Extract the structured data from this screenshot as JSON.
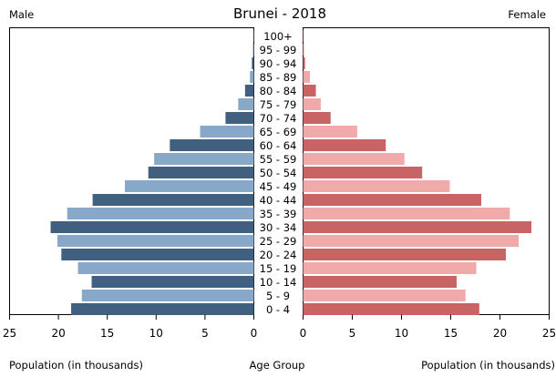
{
  "chart_data": {
    "type": "bar",
    "title": "Brunei - 2018",
    "left_label": "Male",
    "right_label": "Female",
    "xlabel_left": "Population (in thousands)",
    "xlabel_center": "Age Group",
    "xlabel_right": "Population (in thousands)",
    "xlim": [
      0,
      25
    ],
    "x_ticks": [
      "25",
      "20",
      "15",
      "10",
      "5",
      "0"
    ],
    "x_ticks_right": [
      "0",
      "5",
      "10",
      "15",
      "20",
      "25"
    ],
    "categories": [
      "100+",
      "95 - 99",
      "90 - 94",
      "85 - 89",
      "80 - 84",
      "75 - 79",
      "70 - 74",
      "65 - 69",
      "60 - 64",
      "55 - 59",
      "50 - 54",
      "45 - 49",
      "40 - 44",
      "35 - 39",
      "30 - 34",
      "25 - 29",
      "20 - 24",
      "15 - 19",
      "10 - 14",
      "5 - 9",
      "0 - 4"
    ],
    "series": [
      {
        "name": "Male",
        "values": [
          0.05,
          0.1,
          0.2,
          0.4,
          0.9,
          1.6,
          2.9,
          5.5,
          8.6,
          10.2,
          10.8,
          13.2,
          16.5,
          19.1,
          20.8,
          20.1,
          19.7,
          18.0,
          16.6,
          17.6,
          18.7
        ]
      },
      {
        "name": "Female",
        "values": [
          0.05,
          0.1,
          0.2,
          0.7,
          1.3,
          1.8,
          2.8,
          5.5,
          8.4,
          10.3,
          12.1,
          14.9,
          18.1,
          21.0,
          23.2,
          21.9,
          20.6,
          17.6,
          15.6,
          16.5,
          17.9
        ]
      }
    ],
    "colors": {
      "male_dark": "#41607f",
      "male_light": "#87a8c9",
      "female_dark": "#c86464",
      "female_light": "#f0aaaa"
    },
    "grid": false
  }
}
